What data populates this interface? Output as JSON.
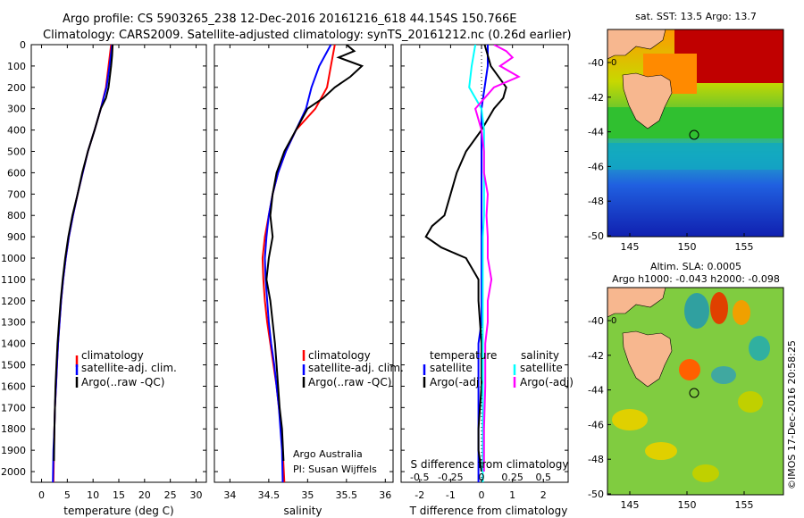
{
  "title": {
    "line1": "Argo profile: CS 5903265_238 12-Dec-2016 20161216_618 44.154S 150.766E",
    "line2": "Climatology: CARS2009. Satellite-adjusted climatology: synTS_20161212.nc (0.26d earlier)"
  },
  "colors": {
    "clim": "#ff0000",
    "sat": "#0000ff",
    "argo": "#000000",
    "tsat": "#00ffff",
    "sargo": "#ff00ff",
    "land": "#f7b78f"
  },
  "depth_ticks": [
    0,
    100,
    200,
    300,
    400,
    500,
    600,
    700,
    800,
    900,
    1000,
    1100,
    1200,
    1300,
    1400,
    1500,
    1600,
    1700,
    1800,
    1900,
    2000
  ],
  "chart_data": [
    {
      "type": "line",
      "xlabel": "temperature (deg C)",
      "xlim": [
        -2,
        32
      ],
      "ylim": [
        2050,
        0
      ],
      "xticks": [
        0,
        5,
        10,
        15,
        20,
        25,
        30
      ],
      "legend": [
        "climatology",
        "satellite-adj. clim.",
        "Argo(..raw -QC)"
      ],
      "series": [
        {
          "name": "climatology",
          "x": [
            13.5,
            13,
            12.5,
            11.5,
            10.3,
            9,
            8,
            7,
            6.1,
            5.3,
            4.7,
            4.2,
            3.8,
            3.5,
            3.2,
            3.0,
            2.8,
            2.6,
            2.5,
            2.4,
            2.3
          ],
          "y": [
            0,
            100,
            200,
            300,
            400,
            500,
            600,
            700,
            800,
            900,
            1000,
            1100,
            1200,
            1300,
            1400,
            1500,
            1600,
            1700,
            1800,
            1900,
            2050
          ]
        },
        {
          "name": "satellite-adj. clim.",
          "x": [
            13.7,
            13.2,
            12.6,
            11.5,
            10.3,
            9,
            8,
            7,
            6.1,
            5.3,
            4.7,
            4.2,
            3.8,
            3.5,
            3.2,
            3.0,
            2.8,
            2.6,
            2.5,
            2.3,
            2.2
          ],
          "y": [
            0,
            100,
            200,
            300,
            400,
            500,
            600,
            700,
            800,
            900,
            1000,
            1100,
            1200,
            1300,
            1400,
            1500,
            1600,
            1700,
            1800,
            1900,
            2050
          ]
        },
        {
          "name": "Argo(..raw -QC)",
          "x": [
            13.8,
            13.7,
            13.5,
            13,
            12.5,
            11.5,
            10.3,
            9,
            7.9,
            7,
            6,
            5.2,
            4.6,
            4.1,
            3.7,
            3.4,
            3.1,
            2.9,
            2.7,
            2.6,
            2.5,
            2.4
          ],
          "y": [
            0,
            50,
            100,
            200,
            250,
            300,
            400,
            500,
            600,
            700,
            800,
            900,
            1000,
            1100,
            1200,
            1300,
            1400,
            1500,
            1600,
            1700,
            1800,
            1950
          ]
        }
      ]
    },
    {
      "type": "line",
      "xlabel": "salinity",
      "xlim": [
        33.8,
        36.1
      ],
      "ylim": [
        2050,
        0
      ],
      "xticks": [
        34,
        34.5,
        35,
        35.5,
        36
      ],
      "xticklabels": [
        "34",
        "34.5",
        "35",
        "35.5",
        "36"
      ],
      "legend": [
        "climatology",
        "satellite-adj. clim.",
        "Argo(..raw -QC)"
      ],
      "series": [
        {
          "name": "climatology",
          "x": [
            35.35,
            35.3,
            35.25,
            35.1,
            34.85,
            34.72,
            34.62,
            34.55,
            34.5,
            34.45,
            34.42,
            34.43,
            34.45,
            34.48,
            34.52,
            34.56,
            34.6,
            34.63,
            34.66,
            34.68,
            34.7
          ],
          "y": [
            0,
            100,
            200,
            300,
            400,
            500,
            600,
            700,
            800,
            900,
            1000,
            1100,
            1200,
            1300,
            1400,
            1500,
            1600,
            1700,
            1800,
            1900,
            2050
          ]
        },
        {
          "name": "satellite-adj. clim.",
          "x": [
            35.3,
            35.15,
            35.05,
            34.98,
            34.85,
            34.72,
            34.62,
            34.55,
            34.5,
            34.47,
            34.45,
            34.46,
            34.48,
            34.5,
            34.53,
            34.57,
            34.6,
            34.63,
            34.65,
            34.67,
            34.68
          ],
          "y": [
            0,
            100,
            200,
            300,
            400,
            500,
            600,
            700,
            800,
            900,
            1000,
            1100,
            1200,
            1300,
            1400,
            1500,
            1600,
            1700,
            1800,
            1900,
            2050
          ]
        },
        {
          "name": "Argo(..raw -QC)",
          "x": [
            35.5,
            35.6,
            35.4,
            35.7,
            35.55,
            35.35,
            35.2,
            35.0,
            34.85,
            34.7,
            34.6,
            34.55,
            34.52,
            34.55,
            34.5,
            34.47,
            34.52,
            34.55,
            34.58,
            34.6,
            34.62,
            34.64,
            34.67,
            34.69
          ],
          "y": [
            0,
            30,
            60,
            100,
            150,
            200,
            250,
            300,
            400,
            500,
            600,
            700,
            800,
            900,
            1000,
            1100,
            1200,
            1300,
            1400,
            1500,
            1600,
            1700,
            1800,
            1950
          ]
        }
      ]
    },
    {
      "type": "line",
      "xlabel": "T difference from climatology",
      "xlabel2": "S difference from climatology",
      "xlim": [
        -2.6,
        2.8
      ],
      "xlim2": [
        -0.65,
        0.7
      ],
      "ylim": [
        2050,
        0
      ],
      "xticks": [
        -2,
        -1,
        0,
        1,
        2
      ],
      "xticks2": [
        -0.5,
        -0.25,
        0,
        0.25,
        0.5
      ],
      "xticklabels2": [
        "-0.5",
        "-0.25",
        "0",
        "0.25",
        "0.5"
      ],
      "legend_title_t": "temperature",
      "legend_title_s": "salinity",
      "legend": [
        "satellite",
        "Argo(-adj)",
        "satellite",
        "Argo(-adj)"
      ],
      "series": [
        {
          "name": "satellite",
          "x": [
            0.2,
            0.2,
            0.1,
            0,
            0,
            0,
            0,
            0,
            0,
            0,
            0,
            0,
            0,
            0,
            -0.1,
            -0.1,
            -0.1,
            -0.1,
            -0.1,
            -0.1,
            -0.1
          ],
          "y": [
            0,
            100,
            200,
            300,
            400,
            500,
            600,
            700,
            800,
            900,
            1000,
            1100,
            1200,
            1300,
            1400,
            1500,
            1600,
            1700,
            1800,
            1900,
            2050
          ]
        },
        {
          "name": "Argo(-adj)",
          "x": [
            0.1,
            0.2,
            0.3,
            0.8,
            0.7,
            0.4,
            0,
            -0.5,
            -0.8,
            -1.0,
            -1.2,
            -1.6,
            -1.8,
            -1.3,
            -0.5,
            -0.1,
            -0.1,
            0,
            0,
            -0.1,
            -0.1,
            0
          ],
          "y": [
            0,
            50,
            100,
            200,
            250,
            300,
            400,
            500,
            600,
            700,
            800,
            850,
            900,
            950,
            1000,
            1100,
            1200,
            1400,
            1600,
            1800,
            1900,
            2000
          ]
        },
        {
          "name": "satellite",
          "axis": "s",
          "x": [
            -0.05,
            -0.08,
            -0.1,
            0,
            0.02,
            0.02,
            0.02,
            0.02,
            0.02,
            0.01,
            0.01,
            0.01,
            0.01,
            0.01,
            0.01,
            0.01,
            0.01,
            0.01,
            0.01,
            0.01,
            0.01
          ],
          "y": [
            0,
            100,
            200,
            300,
            400,
            500,
            600,
            700,
            800,
            900,
            1000,
            1100,
            1200,
            1300,
            1400,
            1500,
            1600,
            1700,
            1800,
            1900,
            2050
          ]
        },
        {
          "name": "Argo(-adj)",
          "axis": "s",
          "x": [
            0.1,
            0.2,
            0.25,
            0.15,
            0.3,
            0.1,
            -0.05,
            0,
            0.02,
            0.02,
            0.05,
            0.04,
            0.05,
            0.05,
            0.08,
            0.05,
            0.05,
            0.03,
            0.03,
            0.02,
            0.02,
            0.02
          ],
          "y": [
            0,
            30,
            60,
            100,
            150,
            200,
            300,
            400,
            500,
            600,
            700,
            800,
            900,
            1000,
            1100,
            1200,
            1300,
            1400,
            1600,
            1800,
            1900,
            2000
          ]
        }
      ]
    }
  ],
  "panels": {
    "p1_legend": [
      "climatology",
      "satellite-adj. clim.",
      "Argo(..raw -QC)"
    ],
    "p2_legend": [
      "climatology",
      "satellite-adj. clim.",
      "Argo(..raw -QC)"
    ],
    "p2_note1": "Argo Australia",
    "p2_note2": "PI: Susan Wijffels",
    "p3_leg_temp": "temperature",
    "p3_leg_sal": "salinity",
    "p3_leg": [
      "satellite",
      "Argo(-adj)",
      "satellite",
      "Argo(-adj)"
    ]
  },
  "maps": {
    "sst_title": "sat. SST: 13.5 Argo: 13.7",
    "sla_title1": "Altim. SLA: 0.0005",
    "sla_title2": "Argo h1000: -0.043 h2000: -0.098",
    "lat_ticks": [
      "-40",
      "-42",
      "-44",
      "-46",
      "-48",
      "-50"
    ],
    "lon_ticks": [
      "145",
      "150",
      "155"
    ],
    "contour_label": "0",
    "stamp": "©IMOS 17-Dec-2016 20:58:25"
  }
}
